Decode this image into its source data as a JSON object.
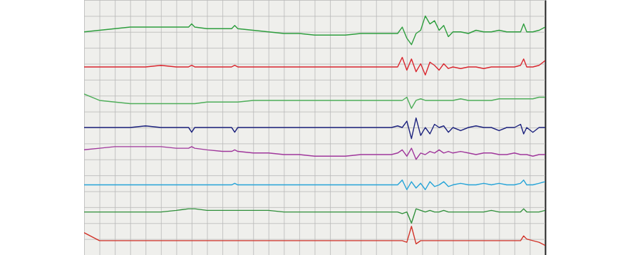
{
  "chart_data": {
    "type": "line",
    "x": [
      0,
      1,
      2,
      3,
      4,
      5,
      6,
      6.8,
      7,
      7.2,
      8,
      9,
      9.6,
      9.8,
      10,
      11,
      12,
      13,
      14,
      15,
      16,
      17,
      18,
      19,
      20,
      20.4,
      20.7,
      21,
      21.3,
      21.6,
      21.9,
      22.2,
      22.5,
      22.8,
      23.1,
      23.4,
      23.7,
      24,
      24.5,
      25,
      25.5,
      26,
      26.5,
      27,
      27.5,
      28,
      28.4,
      28.6,
      28.8,
      29.2,
      29.6,
      30
    ],
    "xlim": [
      0,
      30
    ],
    "ylim": [
      0,
      16
    ],
    "xticks": [
      0,
      1,
      2,
      3,
      4,
      5,
      6,
      7,
      8,
      9,
      10,
      11,
      12,
      13,
      14,
      15,
      16,
      17,
      18,
      19,
      20,
      21,
      22,
      23,
      24,
      25,
      26,
      27,
      28,
      29,
      30
    ],
    "yticks": [
      0,
      1,
      2,
      3,
      4,
      5,
      6,
      7,
      8,
      9,
      10,
      11,
      12,
      13,
      14,
      15,
      16
    ],
    "grid": true,
    "tick_labels": false,
    "series": [
      {
        "color": "#2e9e3e",
        "values": [
          14.0,
          14.1,
          14.2,
          14.3,
          14.3,
          14.3,
          14.3,
          14.3,
          14.5,
          14.3,
          14.2,
          14.2,
          14.2,
          14.4,
          14.2,
          14.1,
          14.0,
          13.9,
          13.9,
          13.8,
          13.8,
          13.8,
          13.9,
          13.9,
          13.9,
          13.9,
          14.3,
          13.6,
          13.2,
          13.9,
          14.1,
          15.0,
          14.5,
          14.7,
          14.1,
          14.4,
          13.7,
          14.0,
          14.0,
          13.9,
          14.1,
          14.0,
          14.0,
          14.1,
          14.0,
          14.0,
          14.0,
          14.5,
          14.0,
          14.0,
          14.1,
          14.3
        ]
      },
      {
        "color": "#d9262e",
        "values": [
          11.8,
          11.8,
          11.8,
          11.8,
          11.8,
          11.9,
          11.8,
          11.8,
          11.9,
          11.8,
          11.8,
          11.8,
          11.8,
          11.9,
          11.8,
          11.8,
          11.8,
          11.8,
          11.8,
          11.8,
          11.8,
          11.8,
          11.8,
          11.8,
          11.8,
          11.8,
          12.4,
          11.6,
          12.3,
          11.5,
          12.0,
          11.3,
          12.1,
          11.9,
          11.6,
          12.0,
          11.7,
          11.8,
          11.7,
          11.8,
          11.8,
          11.7,
          11.8,
          11.8,
          11.8,
          11.8,
          11.9,
          12.3,
          11.8,
          11.8,
          11.9,
          12.2
        ]
      },
      {
        "color": "#4fae5a",
        "values": [
          10.1,
          9.7,
          9.6,
          9.5,
          9.5,
          9.5,
          9.5,
          9.5,
          9.5,
          9.5,
          9.6,
          9.6,
          9.6,
          9.6,
          9.6,
          9.7,
          9.7,
          9.7,
          9.7,
          9.7,
          9.7,
          9.7,
          9.7,
          9.7,
          9.7,
          9.7,
          9.7,
          9.9,
          9.2,
          9.7,
          9.8,
          9.7,
          9.7,
          9.7,
          9.7,
          9.7,
          9.7,
          9.7,
          9.8,
          9.7,
          9.7,
          9.7,
          9.7,
          9.8,
          9.8,
          9.8,
          9.8,
          9.8,
          9.8,
          9.8,
          9.9,
          9.9
        ]
      },
      {
        "color": "#1d237e",
        "values": [
          8.0,
          8.0,
          8.0,
          8.0,
          8.1,
          8.0,
          8.0,
          8.0,
          7.7,
          8.0,
          8.0,
          8.0,
          8.0,
          7.7,
          8.0,
          8.0,
          8.0,
          8.0,
          8.0,
          8.0,
          8.0,
          8.0,
          8.0,
          8.0,
          8.0,
          8.1,
          8.0,
          8.4,
          7.3,
          8.6,
          7.5,
          8.0,
          7.6,
          8.2,
          8.0,
          8.1,
          7.7,
          8.0,
          7.8,
          8.0,
          8.1,
          8.0,
          8.0,
          7.8,
          8.0,
          8.0,
          8.2,
          7.6,
          8.0,
          7.7,
          8.0,
          8.0
        ]
      },
      {
        "color": "#a0389c",
        "values": [
          6.6,
          6.7,
          6.8,
          6.8,
          6.8,
          6.8,
          6.7,
          6.7,
          6.8,
          6.7,
          6.6,
          6.5,
          6.5,
          6.6,
          6.5,
          6.4,
          6.4,
          6.3,
          6.3,
          6.2,
          6.2,
          6.2,
          6.3,
          6.3,
          6.3,
          6.4,
          6.6,
          6.2,
          6.7,
          6.0,
          6.4,
          6.3,
          6.5,
          6.4,
          6.6,
          6.4,
          6.5,
          6.4,
          6.5,
          6.4,
          6.3,
          6.4,
          6.4,
          6.3,
          6.3,
          6.4,
          6.3,
          6.3,
          6.3,
          6.2,
          6.3,
          6.3
        ]
      },
      {
        "color": "#26a4d8",
        "values": [
          4.4,
          4.4,
          4.4,
          4.4,
          4.4,
          4.4,
          4.4,
          4.4,
          4.4,
          4.4,
          4.4,
          4.4,
          4.4,
          4.5,
          4.4,
          4.4,
          4.4,
          4.4,
          4.4,
          4.4,
          4.4,
          4.4,
          4.4,
          4.4,
          4.4,
          4.4,
          4.7,
          4.1,
          4.6,
          4.2,
          4.5,
          4.1,
          4.6,
          4.3,
          4.4,
          4.6,
          4.3,
          4.4,
          4.5,
          4.4,
          4.4,
          4.5,
          4.4,
          4.5,
          4.4,
          4.4,
          4.5,
          4.7,
          4.4,
          4.4,
          4.5,
          4.6
        ]
      },
      {
        "color": "#2f8f3a",
        "values": [
          2.7,
          2.7,
          2.7,
          2.7,
          2.7,
          2.7,
          2.8,
          2.9,
          2.9,
          2.9,
          2.8,
          2.8,
          2.8,
          2.8,
          2.8,
          2.8,
          2.8,
          2.7,
          2.7,
          2.7,
          2.7,
          2.7,
          2.7,
          2.7,
          2.7,
          2.7,
          2.6,
          2.7,
          2.0,
          2.9,
          2.8,
          2.7,
          2.8,
          2.7,
          2.7,
          2.8,
          2.7,
          2.7,
          2.7,
          2.7,
          2.7,
          2.7,
          2.8,
          2.7,
          2.7,
          2.7,
          2.7,
          2.9,
          2.7,
          2.7,
          2.7,
          2.8
        ]
      },
      {
        "color": "#d2342a",
        "values": [
          1.4,
          0.9,
          0.9,
          0.9,
          0.9,
          0.9,
          0.9,
          0.9,
          0.9,
          0.9,
          0.9,
          0.9,
          0.9,
          0.9,
          0.9,
          0.9,
          0.9,
          0.9,
          0.9,
          0.9,
          0.9,
          0.9,
          0.9,
          0.9,
          0.9,
          0.9,
          0.9,
          0.8,
          1.8,
          0.7,
          0.9,
          0.9,
          0.9,
          0.9,
          0.9,
          0.9,
          0.9,
          0.9,
          0.9,
          0.9,
          0.9,
          0.9,
          0.9,
          0.9,
          0.9,
          0.9,
          0.9,
          1.2,
          1.0,
          0.9,
          0.8,
          0.6
        ]
      }
    ]
  }
}
